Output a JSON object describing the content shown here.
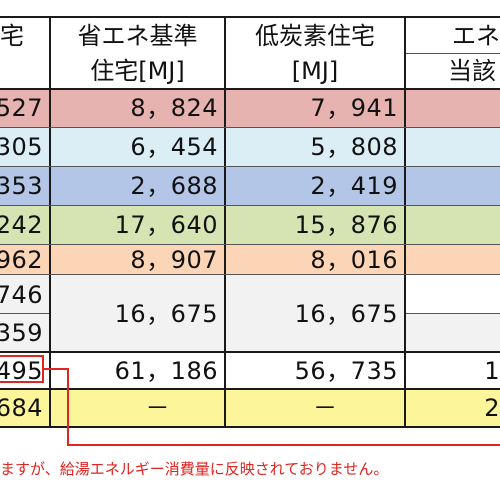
{
  "header": {
    "col0": "宅",
    "col1_line1": "省エネ基準",
    "col1_line2": "住宅[MJ]",
    "col2_line1": "低炭素住宅",
    "col2_line2": "[MJ]",
    "col3_line1": "エネ",
    "col3_line2": "当該"
  },
  "rows": [
    {
      "name": "row-1",
      "c0": "527",
      "c1": "8，824",
      "c2": "7，941",
      "c3": "",
      "color": "#e6b3b1"
    },
    {
      "name": "row-2",
      "c0": "305",
      "c1": "6，454",
      "c2": "5，808",
      "c3": "",
      "color": "#dbeef5"
    },
    {
      "name": "row-3",
      "c0": "353",
      "c1": "2，688",
      "c2": "2，419",
      "c3": "",
      "color": "#b3c6e7"
    },
    {
      "name": "row-4",
      "c0": "242",
      "c1": "17，640",
      "c2": "15，876",
      "c3": "",
      "color": "#d6e4b3"
    },
    {
      "name": "row-5",
      "c0": "962",
      "c1": "8，907",
      "c2": "8，016",
      "c3": "",
      "color": "#fbd5b6"
    }
  ],
  "merged_row": {
    "c0_a": "746",
    "c0_b": "359",
    "c1": "16，675",
    "c2": "16，675",
    "color": "#f2f2f2"
  },
  "total_row": {
    "c0": "495",
    "c1": "61，186",
    "c2": "56，735",
    "c3": "1"
  },
  "last_row": {
    "c0": "684",
    "c1": "－",
    "c2": "－",
    "c3": "2",
    "color": "#fdf59a"
  },
  "footnote": "ますが、給湯エネルギー消費量に反映されておりません。",
  "colors": {
    "highlight_red": "#e0241f",
    "grid": "#1a1a1a"
  }
}
